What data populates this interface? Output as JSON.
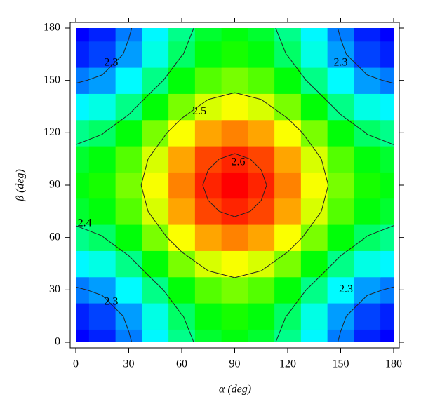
{
  "chart_data": {
    "type": "heatmap",
    "xlabel": "α (deg)",
    "ylabel": "β (deg)",
    "x": [
      0,
      15,
      30,
      45,
      60,
      75,
      90,
      105,
      120,
      135,
      150,
      165,
      180
    ],
    "y": [
      0,
      15,
      30,
      45,
      60,
      75,
      90,
      105,
      120,
      135,
      150,
      165,
      180
    ],
    "z": [
      [
        2.25,
        2.262,
        2.295,
        2.34,
        2.385,
        2.418,
        2.43,
        2.418,
        2.385,
        2.34,
        2.295,
        2.262,
        2.25
      ],
      [
        2.262,
        2.274,
        2.307,
        2.352,
        2.398,
        2.431,
        2.443,
        2.431,
        2.398,
        2.352,
        2.307,
        2.274,
        2.262
      ],
      [
        2.295,
        2.307,
        2.341,
        2.386,
        2.432,
        2.465,
        2.478,
        2.465,
        2.432,
        2.386,
        2.341,
        2.307,
        2.295
      ],
      [
        2.34,
        2.352,
        2.386,
        2.433,
        2.479,
        2.513,
        2.525,
        2.513,
        2.479,
        2.433,
        2.386,
        2.352,
        2.34
      ],
      [
        2.385,
        2.398,
        2.432,
        2.479,
        2.526,
        2.56,
        2.573,
        2.56,
        2.526,
        2.479,
        2.432,
        2.398,
        2.385
      ],
      [
        2.418,
        2.431,
        2.465,
        2.513,
        2.56,
        2.595,
        2.607,
        2.595,
        2.56,
        2.513,
        2.465,
        2.431,
        2.418
      ],
      [
        2.43,
        2.443,
        2.478,
        2.525,
        2.573,
        2.607,
        2.62,
        2.607,
        2.573,
        2.525,
        2.478,
        2.443,
        2.43
      ],
      [
        2.418,
        2.431,
        2.465,
        2.513,
        2.56,
        2.595,
        2.607,
        2.595,
        2.56,
        2.513,
        2.465,
        2.431,
        2.418
      ],
      [
        2.385,
        2.398,
        2.432,
        2.479,
        2.526,
        2.56,
        2.573,
        2.56,
        2.526,
        2.479,
        2.432,
        2.398,
        2.385
      ],
      [
        2.34,
        2.352,
        2.386,
        2.433,
        2.479,
        2.513,
        2.525,
        2.513,
        2.479,
        2.433,
        2.386,
        2.352,
        2.34
      ],
      [
        2.295,
        2.307,
        2.341,
        2.386,
        2.432,
        2.465,
        2.478,
        2.465,
        2.432,
        2.386,
        2.341,
        2.307,
        2.295
      ],
      [
        2.262,
        2.274,
        2.307,
        2.352,
        2.398,
        2.431,
        2.443,
        2.431,
        2.398,
        2.352,
        2.307,
        2.274,
        2.262
      ],
      [
        2.25,
        2.262,
        2.295,
        2.34,
        2.385,
        2.418,
        2.43,
        2.418,
        2.385,
        2.34,
        2.295,
        2.262,
        2.25
      ]
    ],
    "zlim": [
      2.25,
      2.62
    ],
    "colormap": [
      "#0000ff",
      "#00ffff",
      "#00ff00",
      "#ffff00",
      "#ff0000"
    ],
    "xlim": [
      0,
      180
    ],
    "ylim": [
      0,
      180
    ],
    "xticks": [
      0,
      30,
      60,
      90,
      120,
      150,
      180
    ],
    "yticks": [
      0,
      30,
      60,
      90,
      120,
      150,
      180
    ],
    "annotations": [
      {
        "text": "2.3",
        "x": 20,
        "y": 160
      },
      {
        "text": "2.3",
        "x": 150,
        "y": 160
      },
      {
        "text": "2.3",
        "x": 20,
        "y": 23
      },
      {
        "text": "2.3",
        "x": 153,
        "y": 30
      },
      {
        "text": "2.5",
        "x": 70,
        "y": 132
      },
      {
        "text": "2.6",
        "x": 92,
        "y": 103
      },
      {
        "text": "2.4",
        "x": 5,
        "y": 68
      }
    ]
  }
}
